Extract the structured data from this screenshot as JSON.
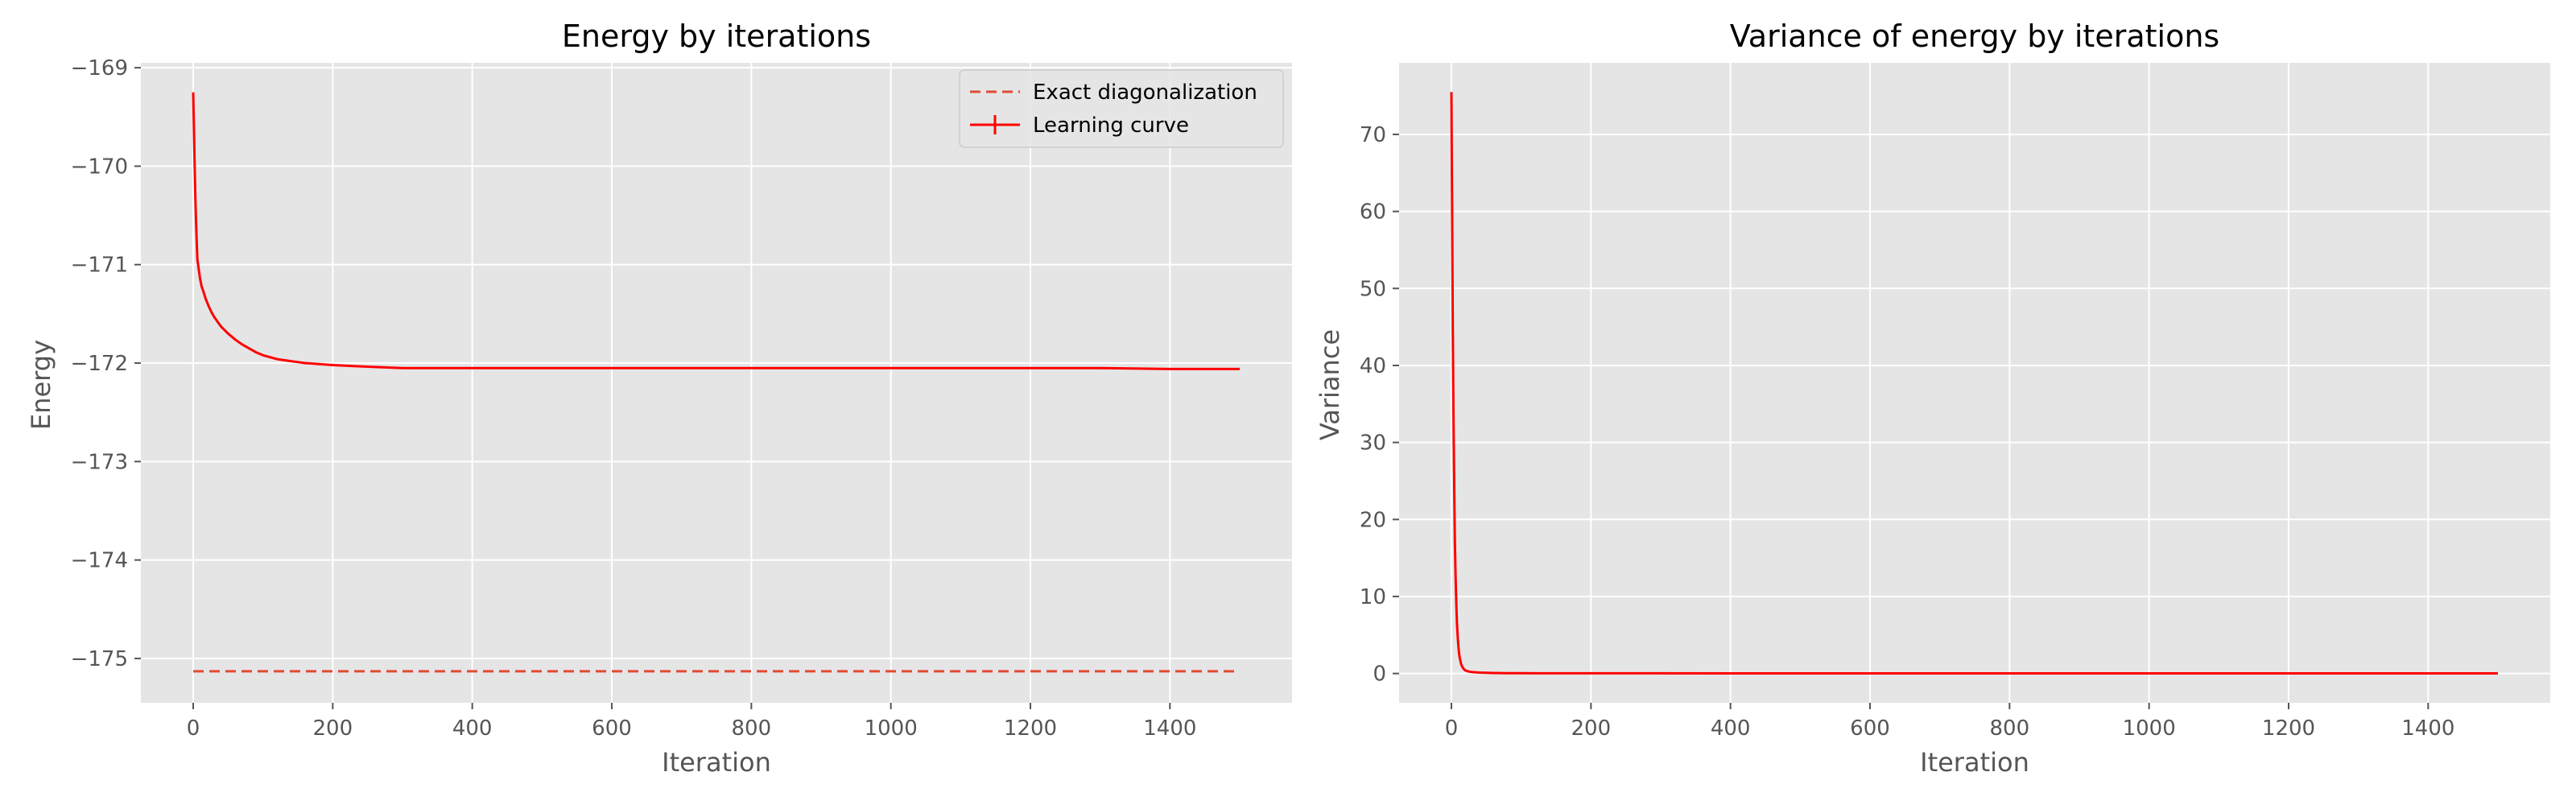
{
  "chart_data": [
    {
      "type": "line",
      "title": "Energy by iterations",
      "xlabel": "Iteration",
      "ylabel": "Energy",
      "xlim": [
        -75,
        1575
      ],
      "ylim": [
        -175.45,
        -168.95
      ],
      "xticks": [
        0,
        200,
        400,
        600,
        800,
        1000,
        1200,
        1400
      ],
      "yticks": [
        -175,
        -174,
        -173,
        -172,
        -171,
        -170,
        -169
      ],
      "grid": true,
      "legend_position": "top-right",
      "series": [
        {
          "name": "Exact diagonalization",
          "style": "dashed",
          "color": "#e24a33",
          "x": [
            0,
            1500
          ],
          "y": [
            -175.13,
            -175.13
          ]
        },
        {
          "name": "Learning curve",
          "style": "solid",
          "color": "#ff0000",
          "x": [
            0,
            1,
            2,
            3,
            4,
            5,
            6,
            8,
            10,
            12,
            15,
            18,
            22,
            26,
            30,
            35,
            40,
            50,
            60,
            70,
            80,
            90,
            100,
            110,
            120,
            130,
            140,
            150,
            160,
            180,
            200,
            230,
            260,
            300,
            400,
            500,
            600,
            700,
            800,
            900,
            1000,
            1100,
            1200,
            1300,
            1400,
            1500
          ],
          "y": [
            -169.25,
            -169.6,
            -169.95,
            -170.3,
            -170.55,
            -170.75,
            -170.95,
            -171.05,
            -171.15,
            -171.22,
            -171.28,
            -171.35,
            -171.42,
            -171.48,
            -171.53,
            -171.58,
            -171.63,
            -171.7,
            -171.76,
            -171.81,
            -171.85,
            -171.89,
            -171.92,
            -171.94,
            -171.96,
            -171.97,
            -171.98,
            -171.99,
            -172.0,
            -172.01,
            -172.02,
            -172.03,
            -172.04,
            -172.05,
            -172.05,
            -172.05,
            -172.05,
            -172.05,
            -172.05,
            -172.05,
            -172.05,
            -172.05,
            -172.05,
            -172.05,
            -172.06,
            -172.06
          ]
        }
      ]
    },
    {
      "type": "line",
      "title": "Variance of energy by iterations",
      "xlabel": "Iteration",
      "ylabel": "Variance",
      "xlim": [
        -75,
        1575
      ],
      "ylim": [
        -3.8,
        79.3
      ],
      "xticks": [
        0,
        200,
        400,
        600,
        800,
        1000,
        1200,
        1400
      ],
      "yticks": [
        0,
        10,
        20,
        30,
        40,
        50,
        60,
        70
      ],
      "grid": true,
      "series": [
        {
          "style": "solid",
          "color": "#ff0000",
          "x": [
            0,
            1,
            2,
            3,
            4,
            5,
            6,
            7,
            8,
            9,
            10,
            11,
            12,
            14,
            16,
            18,
            20,
            25,
            30,
            40,
            50,
            60,
            80,
            100,
            200,
            400,
            600,
            800,
            1000,
            1200,
            1400,
            1500
          ],
          "y": [
            75.5,
            60,
            45,
            33,
            24,
            17,
            12.5,
            9,
            6.5,
            4.8,
            3.5,
            2.6,
            2.0,
            1.2,
            0.8,
            0.55,
            0.4,
            0.25,
            0.18,
            0.12,
            0.09,
            0.07,
            0.05,
            0.04,
            0.03,
            0.02,
            0.02,
            0.02,
            0.02,
            0.02,
            0.02,
            0.02
          ]
        }
      ]
    }
  ]
}
